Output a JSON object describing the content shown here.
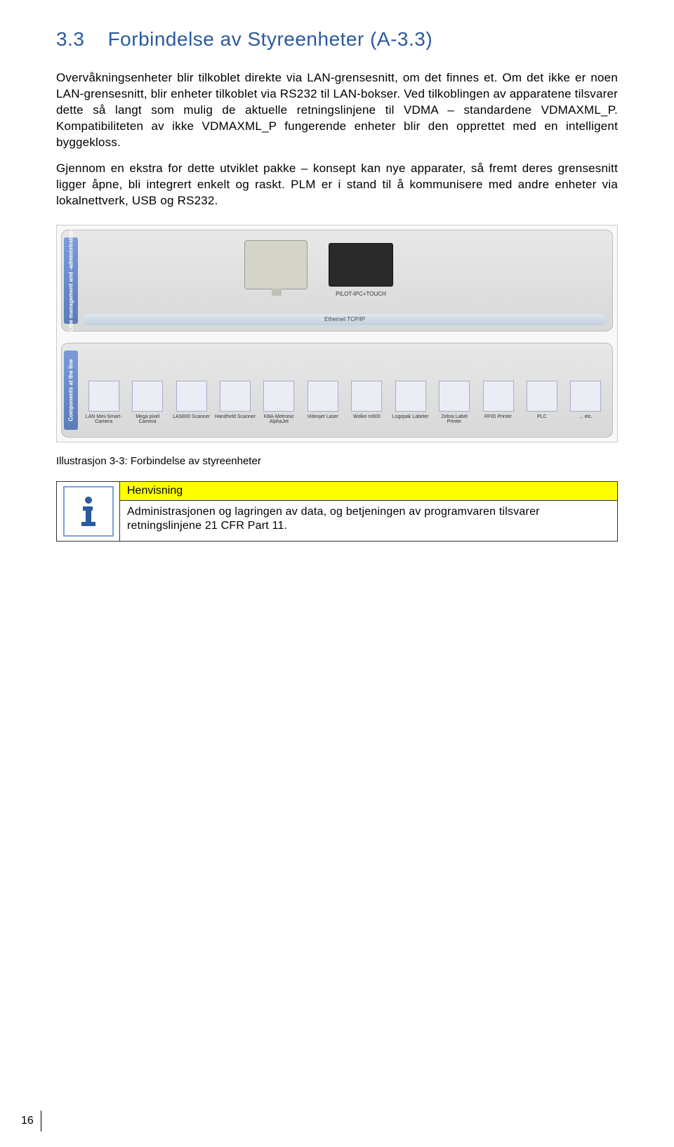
{
  "section": {
    "number": "3.3",
    "title": "Forbindelse av  Styreenheter (A-3.3)"
  },
  "paragraphs": {
    "p1": "Overvåkningsenheter blir tilkoblet direkte via LAN-grensesnitt, om det finnes et. Om det ikke er noen LAN-grensesnitt, blir enheter tilkoblet via RS232 til LAN-bokser. Ved tilkoblingen av apparatene tilsvarer dette så langt som mulig de aktuelle retningslinjene til VDMA – standardene VDMAXML_P. Kompatibiliteten av ikke VDMAXML_P fungerende enheter blir den opprettet med en intelligent byggekloss.",
    "p2": "Gjennom en ekstra for dette utviklet pakke – konsept kan nye apparater, så fremt deres grensesnitt ligger åpne, bli integrert enkelt og raskt. PLM er i stand til å kommunisere med andre enheter via lokalnettverk, USB og RS232."
  },
  "diagram": {
    "top_side_label": "Line management and -administration",
    "bottom_side_label": "Components at the line",
    "device_label": "PILOT-IPC+TOUCH",
    "ethernet_label": "Ethernet TCP/IP",
    "components": [
      {
        "label": "LAN Mini-Smart-Camera"
      },
      {
        "label": "Mega pixel Camera"
      },
      {
        "label": "LAS800 Scanner"
      },
      {
        "label": "Handheld Scanner"
      },
      {
        "label": "KBA-Metronic AlphaJet"
      },
      {
        "label": "Videojet Laser"
      },
      {
        "label": "Wolke m600"
      },
      {
        "label": "Logopak Labeler"
      },
      {
        "label": "Zebra Label Printer"
      },
      {
        "label": "RFID Printer"
      },
      {
        "label": "PLC"
      },
      {
        "label": "... etc."
      }
    ]
  },
  "illustration_caption": "Illustrasjon 3-3: Forbindelse av styreenheter",
  "note": {
    "header": "Henvisning",
    "text": "Administrasjonen og lagringen av data, og betjeningen av programvaren tilsvarer retningslinjene 21 CFR Part 11."
  },
  "page_number": "16",
  "colors": {
    "heading": "#2a5aa0",
    "highlight": "#ffff00",
    "icon_border": "#7aa3d8"
  }
}
